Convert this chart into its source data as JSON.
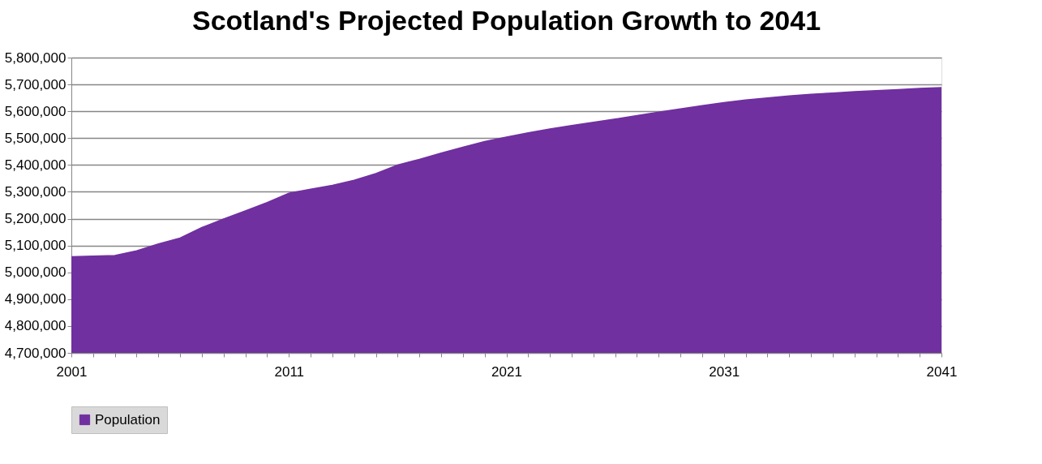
{
  "chart_data": {
    "type": "area",
    "title": "Scotland's Projected Population  Growth to 2041",
    "x": [
      2001,
      2002,
      2003,
      2004,
      2005,
      2006,
      2007,
      2008,
      2009,
      2010,
      2011,
      2012,
      2013,
      2014,
      2015,
      2016,
      2017,
      2018,
      2019,
      2020,
      2021,
      2022,
      2023,
      2024,
      2025,
      2026,
      2027,
      2028,
      2029,
      2030,
      2031,
      2032,
      2033,
      2034,
      2035,
      2036,
      2037,
      2038,
      2039,
      2040,
      2041
    ],
    "series": [
      {
        "name": "Population",
        "color": "#7030a0",
        "values": [
          5058000,
          5060000,
          5063000,
          5080000,
          5106000,
          5128000,
          5167000,
          5199000,
          5229000,
          5260000,
          5295000,
          5310000,
          5324000,
          5343000,
          5368000,
          5400000,
          5421000,
          5444000,
          5466000,
          5487000,
          5504000,
          5520000,
          5534000,
          5547000,
          5559000,
          5571000,
          5584000,
          5597000,
          5609000,
          5621000,
          5632000,
          5642000,
          5650000,
          5657000,
          5663000,
          5668000,
          5673000,
          5677000,
          5681000,
          5685000,
          5688000
        ]
      }
    ],
    "xlim": [
      2001,
      2041
    ],
    "xticks": [
      2001,
      {
        "value": 2002,
        "label": null
      },
      {
        "value": 2003,
        "label": null
      },
      {
        "value": 2004,
        "label": null
      },
      {
        "value": 2005,
        "label": null
      },
      {
        "value": 2006,
        "label": null
      },
      {
        "value": 2007,
        "label": null
      },
      {
        "value": 2008,
        "label": null
      },
      {
        "value": 2009,
        "label": null
      },
      {
        "value": 2010,
        "label": null
      },
      2011,
      {
        "value": 2012,
        "label": null
      },
      {
        "value": 2013,
        "label": null
      },
      {
        "value": 2014,
        "label": null
      },
      {
        "value": 2015,
        "label": null
      },
      {
        "value": 2016,
        "label": null
      },
      {
        "value": 2017,
        "label": null
      },
      {
        "value": 2018,
        "label": null
      },
      {
        "value": 2019,
        "label": null
      },
      {
        "value": 2020,
        "label": null
      },
      2021,
      {
        "value": 2022,
        "label": null
      },
      {
        "value": 2023,
        "label": null
      },
      {
        "value": 2024,
        "label": null
      },
      {
        "value": 2025,
        "label": null
      },
      {
        "value": 2026,
        "label": null
      },
      {
        "value": 2027,
        "label": null
      },
      {
        "value": 2028,
        "label": null
      },
      {
        "value": 2029,
        "label": null
      },
      {
        "value": 2030,
        "label": null
      },
      2031,
      {
        "value": 2032,
        "label": null
      },
      {
        "value": 2033,
        "label": null
      },
      {
        "value": 2034,
        "label": null
      },
      {
        "value": 2035,
        "label": null
      },
      {
        "value": 2036,
        "label": null
      },
      {
        "value": 2037,
        "label": null
      },
      {
        "value": 2038,
        "label": null
      },
      {
        "value": 2039,
        "label": null
      },
      {
        "value": 2040,
        "label": null
      },
      2041
    ],
    "ylim": [
      4700000,
      5800000
    ],
    "yticks": [
      {
        "value": 4700000,
        "label": "4,700,000"
      },
      {
        "value": 4800000,
        "label": "4,800,000"
      },
      {
        "value": 4900000,
        "label": "4,900,000"
      },
      {
        "value": 5000000,
        "label": "5,000,000"
      },
      {
        "value": 5100000,
        "label": "5,100,000"
      },
      {
        "value": 5200000,
        "label": "5,200,000"
      },
      {
        "value": 5300000,
        "label": "5,300,000"
      },
      {
        "value": 5400000,
        "label": "5,400,000"
      },
      {
        "value": 5500000,
        "label": "5,500,000"
      },
      {
        "value": 5600000,
        "label": "5,600,000"
      },
      {
        "value": 5700000,
        "label": "5,700,000"
      },
      {
        "value": 5800000,
        "label": "5,800,000"
      }
    ],
    "grid": "y",
    "legend": "bottom"
  }
}
